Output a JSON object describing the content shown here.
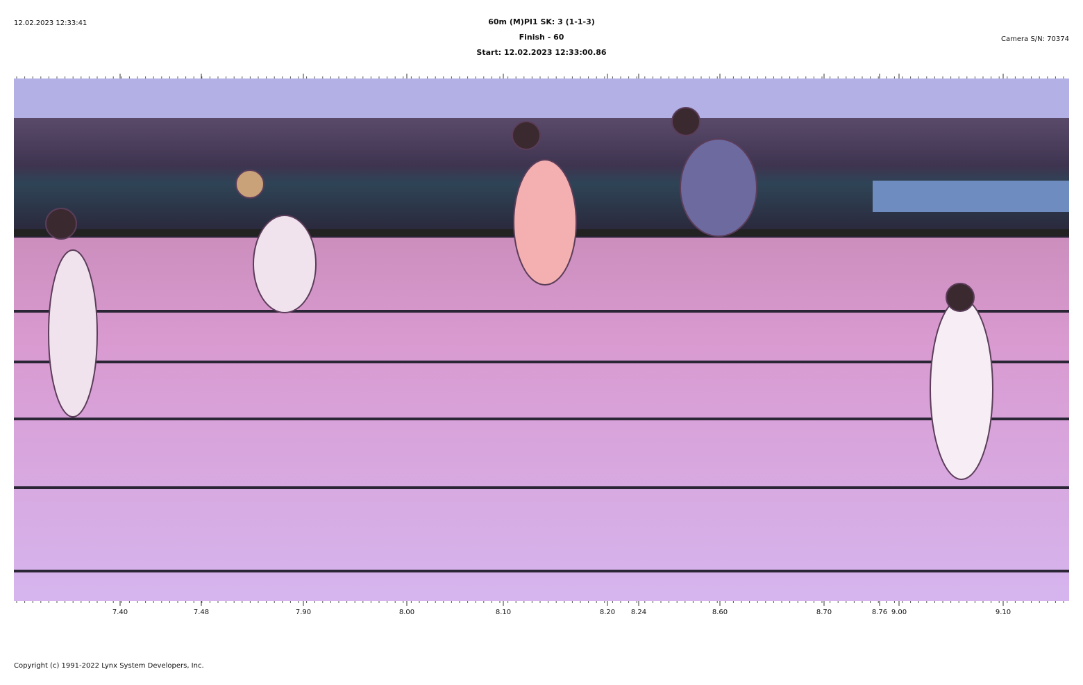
{
  "header": {
    "timestamp": "12.02.2023 12:33:41",
    "event": "60m (M)PI1   SK: 3 (1-1-3)",
    "finish": "Finish - 60",
    "start": "Start: 12.02.2023 12:33:00.86",
    "camera": "Camera S/N: 70374"
  },
  "time_axis": {
    "labels": [
      "7.40",
      "7.48",
      "7.90",
      "8.00",
      "8.10",
      "8.20",
      "8.24",
      "8.60",
      "8.70",
      "8.76",
      "9.00",
      "9.10"
    ]
  },
  "footer": {
    "copyright": "Copyright (c) 1991-2022 Lynx System Developers, Inc."
  }
}
